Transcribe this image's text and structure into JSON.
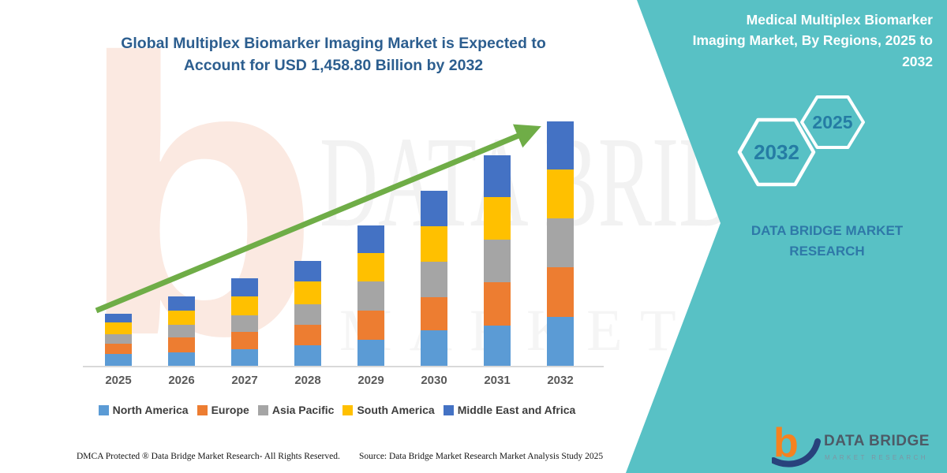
{
  "chart_panel": {
    "title_lines": [
      "Global Multiplex Biomarker Imaging Market is Expected to",
      "Account for USD 1,458.80 Billion by 2032"
    ]
  },
  "chart_data": {
    "type": "bar",
    "stacked": true,
    "title": "Global Multiplex Biomarker Imaging Market is Expected to Account for USD 1,458.80 Billion by 2032",
    "units": "USD Billion (estimated from bar heights; 2032 total labeled as 1,458.80)",
    "categories": [
      "2025",
      "2026",
      "2027",
      "2028",
      "2029",
      "2030",
      "2031",
      "2032"
    ],
    "series": [
      {
        "name": "North America",
        "color": "#5B9BD5",
        "values": [
          70.6,
          80.0,
          98.8,
          122.4,
          155.3,
          211.8,
          240.0,
          291.8
        ]
      },
      {
        "name": "Europe",
        "color": "#ED7D31",
        "values": [
          61.2,
          89.4,
          103.5,
          122.4,
          174.1,
          197.6,
          258.8,
          296.5
        ]
      },
      {
        "name": "Asia Pacific",
        "color": "#A5A5A5",
        "values": [
          56.5,
          75.3,
          98.8,
          122.4,
          174.1,
          211.8,
          254.1,
          291.8
        ]
      },
      {
        "name": "South America",
        "color": "#FFC000",
        "values": [
          70.6,
          84.7,
          112.9,
          136.5,
          169.4,
          211.8,
          254.1,
          291.8
        ]
      },
      {
        "name": "Middle East and Africa",
        "color": "#4472C4",
        "values": [
          51.8,
          84.7,
          108.2,
          122.4,
          164.7,
          211.8,
          249.4,
          286.9
        ]
      }
    ],
    "totals_estimated": [
      310.6,
      414.1,
      522.2,
      626.1,
      837.6,
      1044.8,
      1256.4,
      1458.8
    ],
    "final_value_label": "USD 1,458.80 Billion by 2032",
    "legend_position": "bottom",
    "y_axis_visible": false,
    "grid": false,
    "annotation": "upward green trend arrow from 2025 to 2032",
    "trend_arrow_color": "#6fad47"
  },
  "right_panel": {
    "title_lines": [
      "Medical Multiplex Biomarker",
      "Imaging Market, By Regions, 2025 to",
      "2032"
    ],
    "hexagon_large_year": "2032",
    "hexagon_small_year": "2025",
    "brand_text": "DATA BRIDGE MARKET RESEARCH",
    "colors": {
      "background": "#58c1c5",
      "year_text": "#257ca4",
      "brand_text": "#2e78a8"
    }
  },
  "logo": {
    "letter": "b",
    "text_primary": "DATA BRIDGE",
    "text_secondary": "MARKET RESEARCH",
    "letter_color": "#f58220",
    "swoosh_color": "#28427c"
  },
  "watermarks": {
    "letter": "b",
    "line1": "DATA BRIDGE",
    "line2": "MARKET RESEARCH"
  },
  "footer": {
    "left": "DMCA Protected ® Data Bridge Market Research-  All Rights Reserved.",
    "source": "Source: Data Bridge Market Research  Market Analysis Study 2025"
  }
}
